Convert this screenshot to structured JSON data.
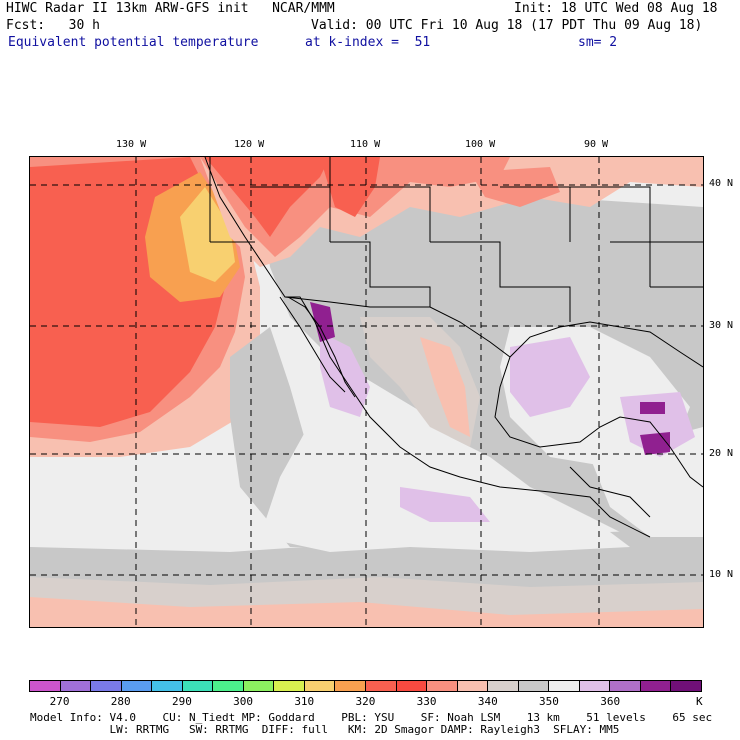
{
  "header": {
    "line1_left": "HIWC Radar II 13km ARW-GFS init   NCAR/MMM",
    "line1_right": "Init: 18 UTC Wed 08 Aug 18",
    "line2_left": "Fcst:   30 h",
    "line2_right": "Valid: 00 UTC Fri 10 Aug 18 (17 PDT Thu 09 Aug 18)",
    "field": "Equivalent potential temperature",
    "level": "at k-index =  51",
    "smooth": "sm= 2"
  },
  "axes": {
    "lon_labels": [
      "130 W",
      "120 W",
      "110 W",
      "100 W",
      "90 W"
    ],
    "lat_labels": [
      "40 N",
      "30 N",
      "20 N",
      "10 N"
    ]
  },
  "colorbar": {
    "colors": [
      "#cc55cc",
      "#a070d8",
      "#7a7ae8",
      "#5a9cf0",
      "#44c0e8",
      "#3ce0b8",
      "#4cf08c",
      "#8cf060",
      "#d8f050",
      "#f8d070",
      "#f8a050",
      "#f86050",
      "#f84a40",
      "#f89080",
      "#f8c0b0",
      "#d8d0cc",
      "#c8c8c8",
      "#eeeeee",
      "#e0c0e8",
      "#b070c8",
      "#902090",
      "#701078"
    ],
    "tick_labels": [
      "270",
      "280",
      "290",
      "300",
      "310",
      "320",
      "330",
      "340",
      "350",
      "360",
      "K"
    ]
  },
  "model_info": {
    "line1": "Model Info: V4.0    CU: N_Tiedt MP: Goddard    PBL: YSU    SF: Noah LSM    13 km    51 levels    65 sec",
    "line2": "            LW: RRTMG   SW: RRTMG  DIFF: full   KM: 2D Smagor DAMP: Rayleigh3  SFLAY: MM5"
  }
}
